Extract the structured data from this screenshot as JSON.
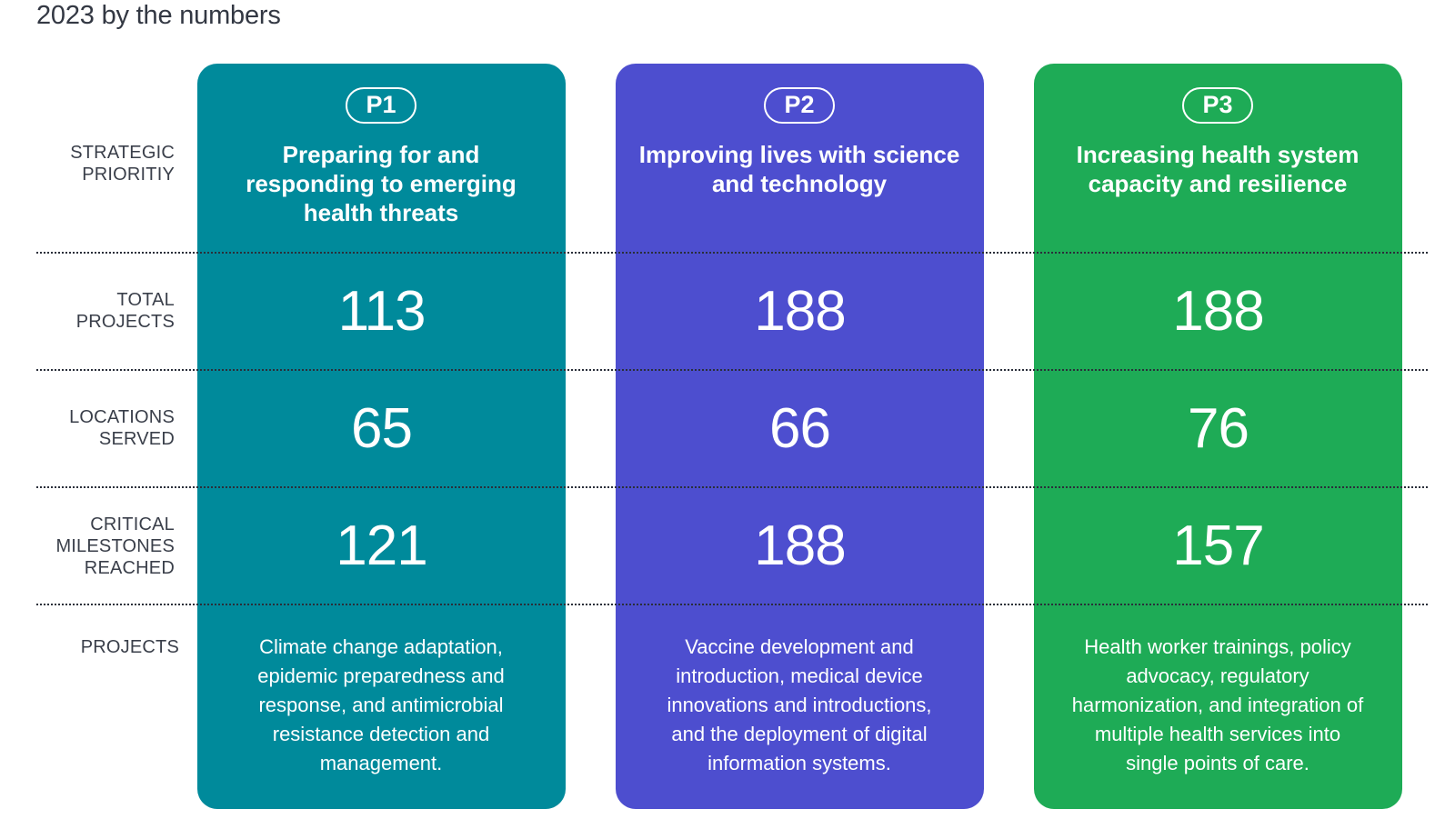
{
  "title": "2023 by the numbers",
  "row_labels": {
    "strategic_priority": [
      "STRATEGIC",
      "PRIORITIY"
    ],
    "total_projects": [
      "TOTAL",
      "PROJECTS"
    ],
    "locations_served": [
      "LOCATIONS",
      "SERVED"
    ],
    "critical_milestones": [
      "CRITICAL",
      "MILESTONES",
      "REACHED"
    ],
    "projects": "PROJECTS"
  },
  "colors": {
    "p1": "#008a9b",
    "p2": "#4d4ecf",
    "p3": "#1eab56"
  },
  "priorities": [
    {
      "badge": "P1",
      "name": "Preparing for and responding to emerging health threats",
      "total_projects": "113",
      "locations_served": "65",
      "critical_milestones": "121",
      "projects": "Climate change adaptation, epidemic preparedness and response, and antimicrobial resistance detection and management."
    },
    {
      "badge": "P2",
      "name": "Improving lives with science and technology",
      "total_projects": "188",
      "locations_served": "66",
      "critical_milestones": "188",
      "projects": "Vaccine development and introduction, medical device innovations and introductions, and the deployment of digital information systems."
    },
    {
      "badge": "P3",
      "name": "Increasing health system capacity and resilience",
      "total_projects": "188",
      "locations_served": "76",
      "critical_milestones": "157",
      "projects": "Health worker trainings, policy advocacy, regulatory harmonization, and integration of multiple health services into single points of care."
    }
  ]
}
